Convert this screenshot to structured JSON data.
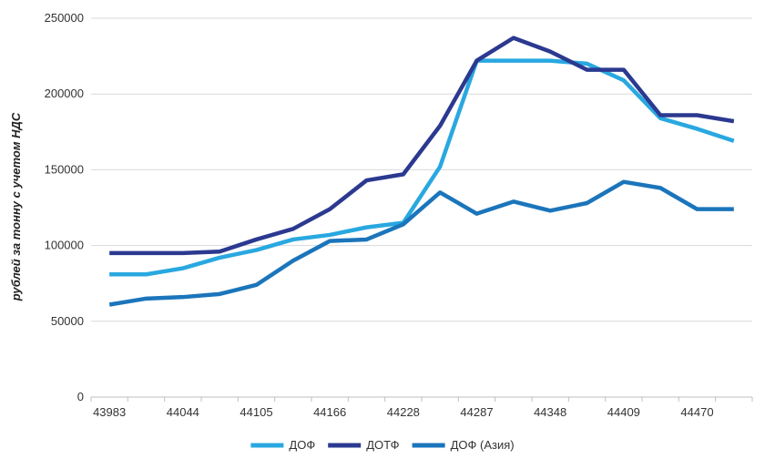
{
  "chart_data": {
    "type": "line",
    "title": "",
    "xlabel": "",
    "ylabel": "рублей за тонну с учетом НДС",
    "ylim": [
      0,
      250000
    ],
    "yticks": [
      0,
      50000,
      100000,
      150000,
      200000,
      250000
    ],
    "x_labels": [
      "43983",
      "44044",
      "44105",
      "44166",
      "44228",
      "44287",
      "44348",
      "44409",
      "44470"
    ],
    "grid": "horizontal",
    "legend": "bottom",
    "series": [
      {
        "name": "ДОФ",
        "color": "#29a8e0",
        "values": [
          81000,
          81000,
          85000,
          92000,
          97000,
          104000,
          107000,
          112000,
          115000,
          152000,
          222000,
          222000,
          222000,
          220000,
          209000,
          184000,
          177000,
          169000
        ]
      },
      {
        "name": "ДОТФ",
        "color": "#2b3990",
        "values": [
          95000,
          95000,
          95000,
          96000,
          104000,
          111000,
          124000,
          143000,
          147000,
          179000,
          222000,
          237000,
          228000,
          216000,
          216000,
          186000,
          186000,
          182000
        ]
      },
      {
        "name": "ДОФ (Азия)",
        "color": "#1b75bb",
        "values": [
          61000,
          65000,
          66000,
          68000,
          74000,
          90000,
          103000,
          104000,
          114000,
          135000,
          121000,
          129000,
          123000,
          128000,
          142000,
          138000,
          124000,
          124000
        ]
      }
    ]
  }
}
